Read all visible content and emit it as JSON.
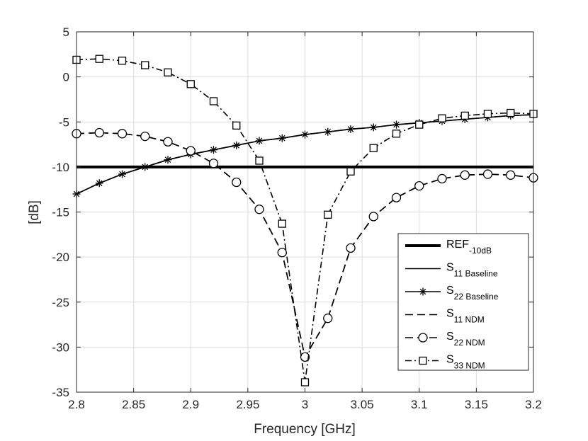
{
  "chart_data": {
    "type": "line",
    "title": "",
    "xlabel": "Frequency [GHz]",
    "ylabel": "[dB]",
    "xlim": [
      2.8,
      3.2
    ],
    "ylim": [
      -35,
      5
    ],
    "xticks": [
      "2.8",
      "2.85",
      "2.9",
      "2.95",
      "3",
      "3.05",
      "3.1",
      "3.15",
      "3.2"
    ],
    "yticks": [
      "5",
      "0",
      "-5",
      "-10",
      "-15",
      "-20",
      "-25",
      "-30",
      "-35"
    ],
    "grid": true,
    "legend_location": "bottom-right",
    "series": [
      {
        "name": "REF-10dB",
        "label_main": "REF",
        "label_sub": "-10dB",
        "style": "solid-thick",
        "marker": "none",
        "x": [
          2.8,
          3.2
        ],
        "y": [
          -10,
          -10
        ]
      },
      {
        "name": "S11 Baseline",
        "label_main": "S",
        "label_sub": "11 Baseline",
        "style": "solid",
        "marker": "none",
        "x": [
          2.8,
          2.82,
          2.84,
          2.86,
          2.88,
          2.9,
          2.92,
          2.94,
          2.96,
          2.98,
          3.0,
          3.02,
          3.04,
          3.06,
          3.08,
          3.1,
          3.12,
          3.14,
          3.16,
          3.18,
          3.2
        ],
        "y": [
          -13.0,
          -11.8,
          -10.8,
          -10.0,
          -9.2,
          -8.6,
          -8.1,
          -7.6,
          -7.1,
          -6.8,
          -6.4,
          -6.1,
          -5.8,
          -5.6,
          -5.3,
          -5.1,
          -4.9,
          -4.7,
          -4.5,
          -4.3,
          -4.2
        ]
      },
      {
        "name": "S22 Baseline",
        "label_main": "S",
        "label_sub": "22 Baseline",
        "style": "solid",
        "marker": "asterisk",
        "x": [
          2.8,
          2.82,
          2.84,
          2.86,
          2.88,
          2.9,
          2.92,
          2.94,
          2.96,
          2.98,
          3.0,
          3.02,
          3.04,
          3.06,
          3.08,
          3.1,
          3.12,
          3.14,
          3.16,
          3.18,
          3.2
        ],
        "y": [
          -13.0,
          -11.8,
          -10.8,
          -10.0,
          -9.2,
          -8.6,
          -8.1,
          -7.6,
          -7.1,
          -6.8,
          -6.4,
          -6.1,
          -5.8,
          -5.6,
          -5.3,
          -5.1,
          -4.9,
          -4.7,
          -4.5,
          -4.3,
          -4.2
        ]
      },
      {
        "name": "S11 NDM",
        "label_main": "S",
        "label_sub": "11 NDM",
        "style": "dashed",
        "marker": "none",
        "x": [
          2.8,
          2.82,
          2.84,
          2.86,
          2.88,
          2.9,
          2.92,
          2.94,
          2.96,
          2.98,
          3.0,
          3.02,
          3.04,
          3.06,
          3.08,
          3.1,
          3.12,
          3.14,
          3.16,
          3.18,
          3.2
        ],
        "y": [
          -6.3,
          -6.2,
          -6.3,
          -6.6,
          -7.2,
          -8.2,
          -9.6,
          -11.7,
          -14.7,
          -19.5,
          -31.1,
          -26.8,
          -19.0,
          -15.5,
          -13.4,
          -12.1,
          -11.3,
          -10.9,
          -10.8,
          -10.9,
          -11.2
        ]
      },
      {
        "name": "S22 NDM",
        "label_main": "S",
        "label_sub": "22 NDM",
        "style": "dashed",
        "marker": "circle",
        "x": [
          2.8,
          2.82,
          2.84,
          2.86,
          2.88,
          2.9,
          2.92,
          2.94,
          2.96,
          2.98,
          3.0,
          3.02,
          3.04,
          3.06,
          3.08,
          3.1,
          3.12,
          3.14,
          3.16,
          3.18,
          3.2
        ],
        "y": [
          -6.3,
          -6.2,
          -6.3,
          -6.6,
          -7.2,
          -8.2,
          -9.6,
          -11.7,
          -14.7,
          -19.5,
          -31.1,
          -26.8,
          -19.0,
          -15.5,
          -13.4,
          -12.1,
          -11.3,
          -10.9,
          -10.8,
          -10.9,
          -11.2
        ]
      },
      {
        "name": "S33 NDM",
        "label_main": "S",
        "label_sub": "33 NDM",
        "style": "dashdot",
        "marker": "square",
        "x": [
          2.8,
          2.82,
          2.84,
          2.86,
          2.88,
          2.9,
          2.92,
          2.94,
          2.96,
          2.98,
          3.0,
          3.02,
          3.04,
          3.06,
          3.08,
          3.1,
          3.12,
          3.14,
          3.16,
          3.18,
          3.2
        ],
        "y": [
          1.9,
          2.0,
          1.8,
          1.3,
          0.5,
          -0.8,
          -2.7,
          -5.4,
          -9.3,
          -16.3,
          -33.9,
          -15.3,
          -10.5,
          -7.9,
          -6.3,
          -5.3,
          -4.6,
          -4.3,
          -4.1,
          -4.0,
          -4.1
        ]
      }
    ]
  }
}
